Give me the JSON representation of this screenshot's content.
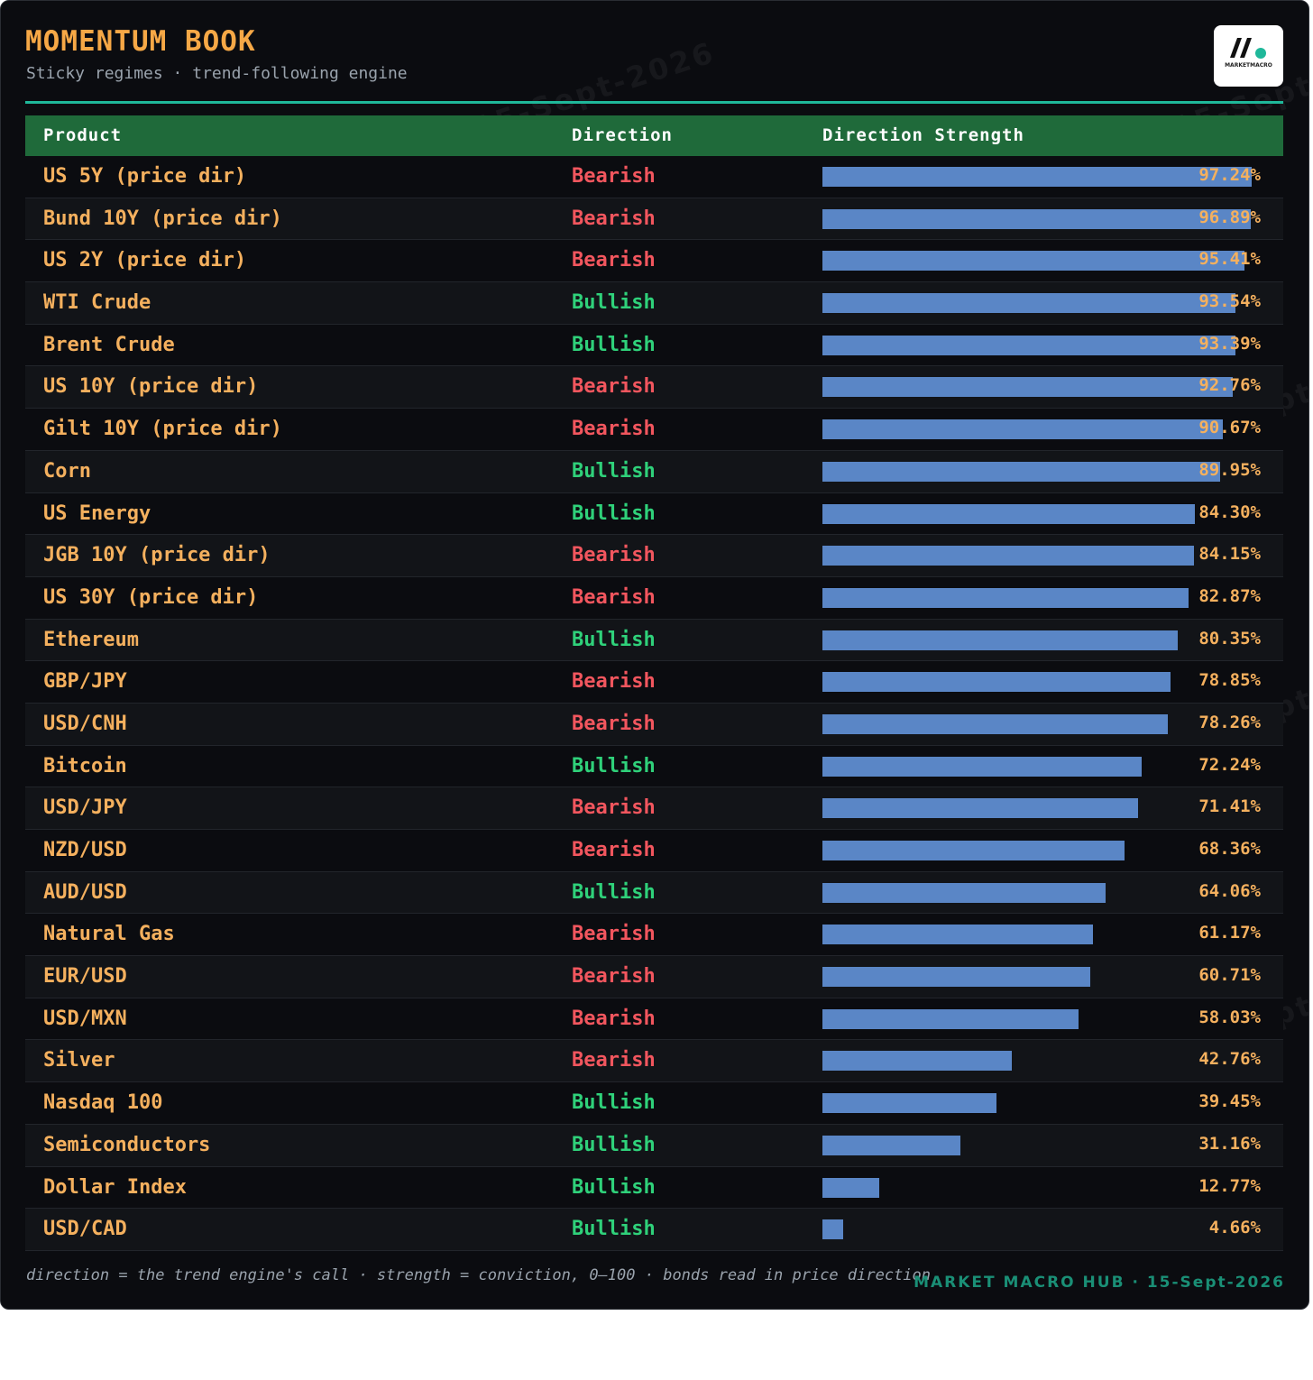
{
  "header": {
    "title": "MOMENTUM BOOK",
    "subtitle": "Sticky regimes · trend-following engine"
  },
  "logo": {
    "text": "MARKETMACRO",
    "accent_color": "#1fb89a"
  },
  "table": {
    "columns": [
      "Product",
      "Direction",
      "Direction Strength"
    ],
    "rows": [
      {
        "product": "US 5Y (price dir)",
        "direction": "Bearish",
        "strength": 97.24,
        "strength_label": "97.24%"
      },
      {
        "product": "Bund 10Y (price dir)",
        "direction": "Bearish",
        "strength": 96.89,
        "strength_label": "96.89%"
      },
      {
        "product": "US 2Y (price dir)",
        "direction": "Bearish",
        "strength": 95.41,
        "strength_label": "95.41%"
      },
      {
        "product": "WTI Crude",
        "direction": "Bullish",
        "strength": 93.54,
        "strength_label": "93.54%"
      },
      {
        "product": "Brent Crude",
        "direction": "Bullish",
        "strength": 93.39,
        "strength_label": "93.39%"
      },
      {
        "product": "US 10Y (price dir)",
        "direction": "Bearish",
        "strength": 92.76,
        "strength_label": "92.76%"
      },
      {
        "product": "Gilt 10Y (price dir)",
        "direction": "Bearish",
        "strength": 90.67,
        "strength_label": "90.67%"
      },
      {
        "product": "Corn",
        "direction": "Bullish",
        "strength": 89.95,
        "strength_label": "89.95%"
      },
      {
        "product": "US Energy",
        "direction": "Bullish",
        "strength": 84.3,
        "strength_label": "84.30%"
      },
      {
        "product": "JGB 10Y (price dir)",
        "direction": "Bearish",
        "strength": 84.15,
        "strength_label": "84.15%"
      },
      {
        "product": "US 30Y (price dir)",
        "direction": "Bearish",
        "strength": 82.87,
        "strength_label": "82.87%"
      },
      {
        "product": "Ethereum",
        "direction": "Bullish",
        "strength": 80.35,
        "strength_label": "80.35%"
      },
      {
        "product": "GBP/JPY",
        "direction": "Bearish",
        "strength": 78.85,
        "strength_label": "78.85%"
      },
      {
        "product": "USD/CNH",
        "direction": "Bearish",
        "strength": 78.26,
        "strength_label": "78.26%"
      },
      {
        "product": "Bitcoin",
        "direction": "Bullish",
        "strength": 72.24,
        "strength_label": "72.24%"
      },
      {
        "product": "USD/JPY",
        "direction": "Bearish",
        "strength": 71.41,
        "strength_label": "71.41%"
      },
      {
        "product": "NZD/USD",
        "direction": "Bearish",
        "strength": 68.36,
        "strength_label": "68.36%"
      },
      {
        "product": "AUD/USD",
        "direction": "Bullish",
        "strength": 64.06,
        "strength_label": "64.06%"
      },
      {
        "product": "Natural Gas",
        "direction": "Bearish",
        "strength": 61.17,
        "strength_label": "61.17%"
      },
      {
        "product": "EUR/USD",
        "direction": "Bearish",
        "strength": 60.71,
        "strength_label": "60.71%"
      },
      {
        "product": "USD/MXN",
        "direction": "Bearish",
        "strength": 58.03,
        "strength_label": "58.03%"
      },
      {
        "product": "Silver",
        "direction": "Bearish",
        "strength": 42.76,
        "strength_label": "42.76%"
      },
      {
        "product": "Nasdaq 100",
        "direction": "Bullish",
        "strength": 39.45,
        "strength_label": "39.45%"
      },
      {
        "product": "Semiconductors",
        "direction": "Bullish",
        "strength": 31.16,
        "strength_label": "31.16%"
      },
      {
        "product": "Dollar Index",
        "direction": "Bullish",
        "strength": 12.77,
        "strength_label": "12.77%"
      },
      {
        "product": "USD/CAD",
        "direction": "Bullish",
        "strength": 4.66,
        "strength_label": "4.66%"
      }
    ]
  },
  "footer": {
    "note": "direction = the trend engine's call · strength = conviction, 0–100 · bonds read in price direction",
    "brand": "MARKET MACRO HUB · 15-Sept-2026"
  },
  "watermark": {
    "text": "MARKET MACRO HUB · 15-Sept-2026"
  },
  "colors": {
    "background": "#0b0c10",
    "title": "#f6a846",
    "product_text": "#f4b05e",
    "bearish": "#f2565e",
    "bullish": "#2fd17a",
    "bar": "#5a86c6",
    "header_row": "#1f6a3a",
    "accent_rule": "#1fb89a",
    "brand": "#1a8f76"
  }
}
